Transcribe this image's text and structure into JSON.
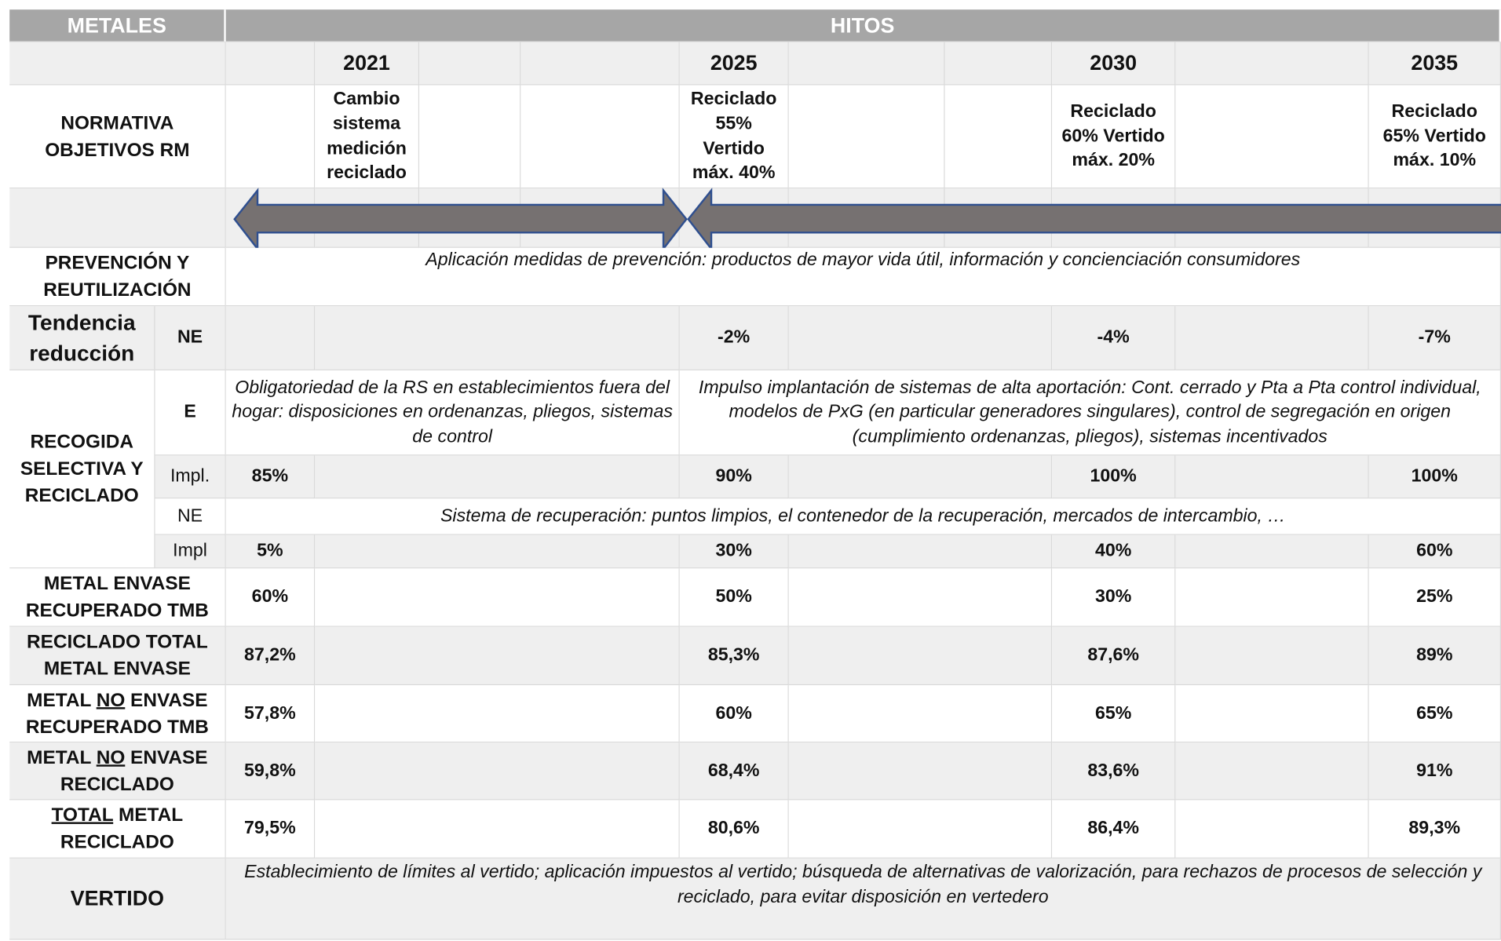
{
  "header": {
    "metales": "METALES",
    "hitos": "HITOS"
  },
  "years": [
    "2021",
    "2025",
    "2030",
    "2035"
  ],
  "normativa": {
    "label": "NORMATIVA OBJETIVOS RM",
    "items": [
      "Cambio sistema medición reciclado",
      "Reciclado 55% Vertido máx. 40%",
      "Reciclado 60% Vertido máx. 20%",
      "Reciclado 65% Vertido máx. 10%"
    ]
  },
  "prevencion": {
    "label": "PREVENCIÓN Y REUTILIZACIÓN",
    "text": "Aplicación medidas de prevención: productos de mayor vida útil, información y concienciación consumidores"
  },
  "tendencia": {
    "label": "Tendencia reducción",
    "sub": "NE",
    "values": [
      "-2%",
      "-4%",
      "-7%"
    ]
  },
  "recogida": {
    "label": "RECOGIDA SELECTIVA Y RECICLADO",
    "e": {
      "sub": "E",
      "text1": "Obligatoriedad de la RS en establecimientos fuera del hogar: disposiciones en ordenanzas, pliegos, sistemas de control",
      "text2": "Impulso implantación de sistemas de alta aportación: Cont. cerrado y Pta a Pta control individual, modelos de PxG (en particular generadores singulares), control de segregación en origen (cumplimiento ordenanzas, pliegos), sistemas incentivados"
    },
    "e_impl": {
      "sub": "Impl.",
      "values": [
        "85%",
        "90%",
        "100%",
        "100%"
      ]
    },
    "ne": {
      "sub": "NE",
      "text": "Sistema de recuperación: puntos limpios, el contenedor de la recuperación, mercados de intercambio, …"
    },
    "ne_impl": {
      "sub": "Impl",
      "values": [
        "5%",
        "30%",
        "40%",
        "60%"
      ]
    }
  },
  "metrics": [
    {
      "label": [
        "METAL ENVASE RECUPERADO TMB"
      ],
      "values": [
        "60%",
        "50%",
        "30%",
        "25%"
      ]
    },
    {
      "label": [
        "RECICLADO TOTAL METAL ENVASE"
      ],
      "values": [
        "87,2%",
        "85,3%",
        "87,6%",
        "89%"
      ]
    },
    {
      "label": [
        "METAL ",
        "NO",
        " ENVASE RECUPERADO TMB"
      ],
      "values": [
        "57,8%",
        "60%",
        "65%",
        "65%"
      ]
    },
    {
      "label": [
        "METAL ",
        "NO",
        " ENVASE RECICLADO"
      ],
      "values": [
        "59,8%",
        "68,4%",
        "83,6%",
        "91%"
      ]
    },
    {
      "label": [
        "TOTAL",
        " METAL RECICLADO"
      ],
      "values": [
        "79,5%",
        "80,6%",
        "86,4%",
        "89,3%"
      ]
    }
  ],
  "vertido": {
    "label": "VERTIDO",
    "text": "Establecimiento de límites al vertido; aplicación impuestos al vertido; búsqueda de alternativas de valorización, para rechazos de procesos de selección y reciclado, para evitar disposición en vertedero"
  }
}
